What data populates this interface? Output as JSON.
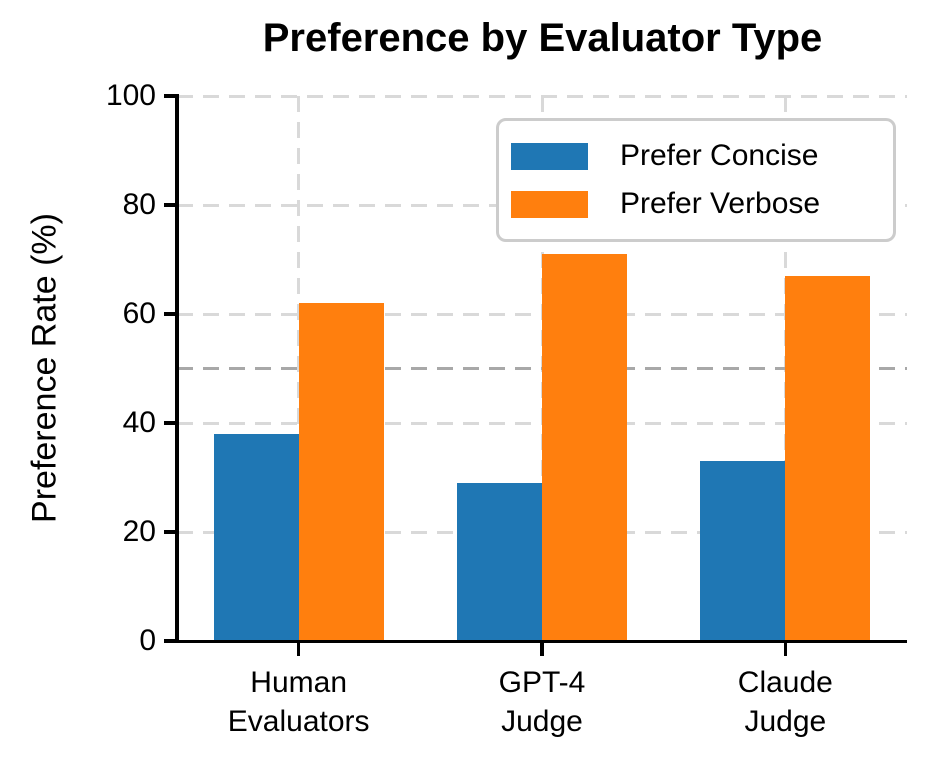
{
  "chart_data": {
    "type": "bar",
    "title": "Preference by Evaluator Type",
    "xlabel": "",
    "ylabel": "Preference Rate (%)",
    "categories": [
      "Human Evaluators",
      "GPT-4 Judge",
      "Claude Judge"
    ],
    "category_lines": [
      [
        "Human",
        "Evaluators"
      ],
      [
        "GPT-4",
        "Judge"
      ],
      [
        "Claude",
        "Judge"
      ]
    ],
    "series": [
      {
        "name": "Prefer Concise",
        "color": "#1f77b4",
        "values": [
          38,
          29,
          33
        ]
      },
      {
        "name": "Prefer Verbose",
        "color": "#ff7f0e",
        "values": [
          62,
          71,
          67
        ]
      }
    ],
    "ylim": [
      0,
      100
    ],
    "yticks": [
      0,
      20,
      40,
      60,
      80,
      100
    ],
    "reference_line": {
      "y": 50,
      "color": "#a8a8a8",
      "style": "dashed"
    },
    "grid": {
      "horizontal": true,
      "vertical": true,
      "color": "#d9d9d9",
      "style": "dashed"
    },
    "legend": {
      "position": "upper-right",
      "border_color": "#cccccc"
    },
    "axis_color": "#000000"
  }
}
